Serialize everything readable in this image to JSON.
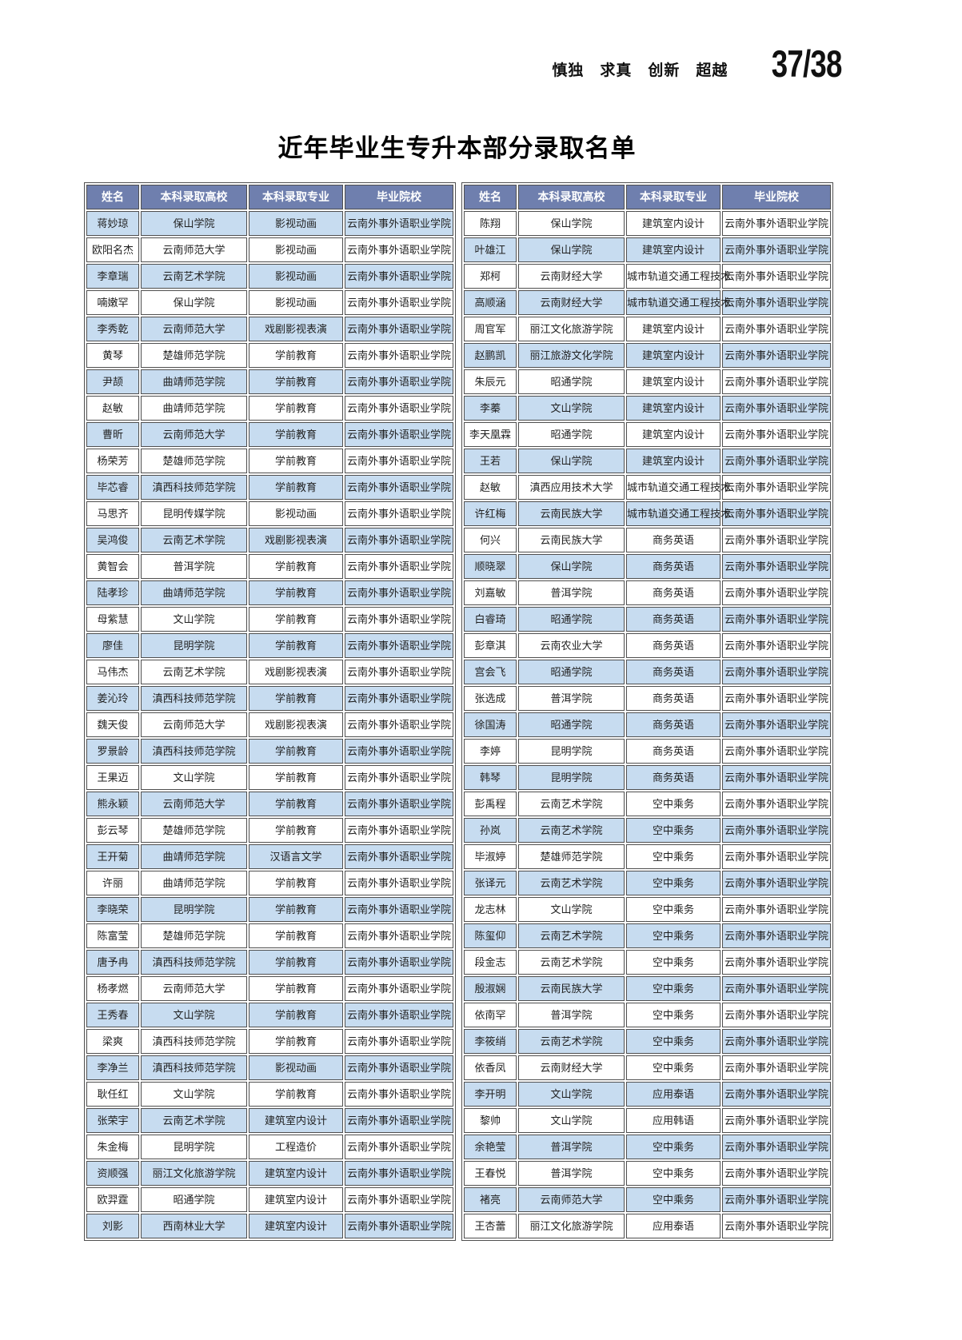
{
  "header": {
    "motto": "慎独　求真　创新　超越",
    "page_number": "37/38"
  },
  "title": "近年毕业生专升本部分录取名单",
  "tables": {
    "headers": [
      "姓名",
      "本科录取高校",
      "本科录取专业",
      "毕业院校"
    ],
    "left_rows": [
      [
        "蒋妙琼",
        "保山学院",
        "影视动画",
        "云南外事外语职业学院"
      ],
      [
        "欧阳名杰",
        "云南师范大学",
        "影视动画",
        "云南外事外语职业学院"
      ],
      [
        "李章瑞",
        "云南艺术学院",
        "影视动画",
        "云南外事外语职业学院"
      ],
      [
        "喃嫩罕",
        "保山学院",
        "影视动画",
        "云南外事外语职业学院"
      ],
      [
        "李秀乾",
        "云南师范大学",
        "戏剧影视表演",
        "云南外事外语职业学院"
      ],
      [
        "黄琴",
        "楚雄师范学院",
        "学前教育",
        "云南外事外语职业学院"
      ],
      [
        "尹颉",
        "曲靖师范学院",
        "学前教育",
        "云南外事外语职业学院"
      ],
      [
        "赵敏",
        "曲靖师范学院",
        "学前教育",
        "云南外事外语职业学院"
      ],
      [
        "曹昕",
        "云南师范大学",
        "学前教育",
        "云南外事外语职业学院"
      ],
      [
        "杨荣芳",
        "楚雄师范学院",
        "学前教育",
        "云南外事外语职业学院"
      ],
      [
        "毕芯睿",
        "滇西科技师范学院",
        "学前教育",
        "云南外事外语职业学院"
      ],
      [
        "马思齐",
        "昆明传媒学院",
        "影视动画",
        "云南外事外语职业学院"
      ],
      [
        "吴鸿俊",
        "云南艺术学院",
        "戏剧影视表演",
        "云南外事外语职业学院"
      ],
      [
        "黄智会",
        "普洱学院",
        "学前教育",
        "云南外事外语职业学院"
      ],
      [
        "陆孝珍",
        "曲靖师范学院",
        "学前教育",
        "云南外事外语职业学院"
      ],
      [
        "母紫慧",
        "文山学院",
        "学前教育",
        "云南外事外语职业学院"
      ],
      [
        "廖佳",
        "昆明学院",
        "学前教育",
        "云南外事外语职业学院"
      ],
      [
        "马伟杰",
        "云南艺术学院",
        "戏剧影视表演",
        "云南外事外语职业学院"
      ],
      [
        "姜沁玲",
        "滇西科技师范学院",
        "学前教育",
        "云南外事外语职业学院"
      ],
      [
        "魏天俊",
        "云南师范大学",
        "戏剧影视表演",
        "云南外事外语职业学院"
      ],
      [
        "罗景龄",
        "滇西科技师范学院",
        "学前教育",
        "云南外事外语职业学院"
      ],
      [
        "王果迈",
        "文山学院",
        "学前教育",
        "云南外事外语职业学院"
      ],
      [
        "熊永颖",
        "云南师范大学",
        "学前教育",
        "云南外事外语职业学院"
      ],
      [
        "彭云琴",
        "楚雄师范学院",
        "学前教育",
        "云南外事外语职业学院"
      ],
      [
        "王开菊",
        "曲靖师范学院",
        "汉语言文学",
        "云南外事外语职业学院"
      ],
      [
        "许丽",
        "曲靖师范学院",
        "学前教育",
        "云南外事外语职业学院"
      ],
      [
        "李晓荣",
        "昆明学院",
        "学前教育",
        "云南外事外语职业学院"
      ],
      [
        "陈富莹",
        "楚雄师范学院",
        "学前教育",
        "云南外事外语职业学院"
      ],
      [
        "唐予冉",
        "滇西科技师范学院",
        "学前教育",
        "云南外事外语职业学院"
      ],
      [
        "杨孝燃",
        "云南师范大学",
        "学前教育",
        "云南外事外语职业学院"
      ],
      [
        "王秀春",
        "文山学院",
        "学前教育",
        "云南外事外语职业学院"
      ],
      [
        "梁爽",
        "滇西科技师范学院",
        "学前教育",
        "云南外事外语职业学院"
      ],
      [
        "李净兰",
        "滇西科技师范学院",
        "影视动画",
        "云南外事外语职业学院"
      ],
      [
        "耿任红",
        "文山学院",
        "学前教育",
        "云南外事外语职业学院"
      ],
      [
        "张荣宇",
        "云南艺术学院",
        "建筑室内设计",
        "云南外事外语职业学院"
      ],
      [
        "朱金梅",
        "昆明学院",
        "工程造价",
        "云南外事外语职业学院"
      ],
      [
        "资顺强",
        "丽江文化旅游学院",
        "建筑室内设计",
        "云南外事外语职业学院"
      ],
      [
        "欧羿霆",
        "昭通学院",
        "建筑室内设计",
        "云南外事外语职业学院"
      ],
      [
        "刘影",
        "西南林业大学",
        "建筑室内设计",
        "云南外事外语职业学院"
      ]
    ],
    "right_rows": [
      [
        "陈翔",
        "保山学院",
        "建筑室内设计",
        "云南外事外语职业学院"
      ],
      [
        "叶雄江",
        "保山学院",
        "建筑室内设计",
        "云南外事外语职业学院"
      ],
      [
        "郑柯",
        "云南财经大学",
        "城市轨道交通工程技术",
        "云南外事外语职业学院"
      ],
      [
        "高顺涵",
        "云南财经大学",
        "城市轨道交通工程技术",
        "云南外事外语职业学院"
      ],
      [
        "周官军",
        "丽江文化旅游学院",
        "建筑室内设计",
        "云南外事外语职业学院"
      ],
      [
        "赵鹏凯",
        "丽江旅游文化学院",
        "建筑室内设计",
        "云南外事外语职业学院"
      ],
      [
        "朱辰元",
        "昭通学院",
        "建筑室内设计",
        "云南外事外语职业学院"
      ],
      [
        "李蓁",
        "文山学院",
        "建筑室内设计",
        "云南外事外语职业学院"
      ],
      [
        "李天凰霖",
        "昭通学院",
        "建筑室内设计",
        "云南外事外语职业学院"
      ],
      [
        "王若",
        "保山学院",
        "建筑室内设计",
        "云南外事外语职业学院"
      ],
      [
        "赵敏",
        "滇西应用技术大学",
        "城市轨道交通工程技术",
        "云南外事外语职业学院"
      ],
      [
        "许红梅",
        "云南民族大学",
        "城市轨道交通工程技术",
        "云南外事外语职业学院"
      ],
      [
        "何兴",
        "云南民族大学",
        "商务英语",
        "云南外事外语职业学院"
      ],
      [
        "顺晓翠",
        "保山学院",
        "商务英语",
        "云南外事外语职业学院"
      ],
      [
        "刘嘉敏",
        "普洱学院",
        "商务英语",
        "云南外事外语职业学院"
      ],
      [
        "白睿琦",
        "昭通学院",
        "商务英语",
        "云南外事外语职业学院"
      ],
      [
        "彭章淇",
        "云南农业大学",
        "商务英语",
        "云南外事外语职业学院"
      ],
      [
        "宫会飞",
        "昭通学院",
        "商务英语",
        "云南外事外语职业学院"
      ],
      [
        "张选成",
        "普洱学院",
        "商务英语",
        "云南外事外语职业学院"
      ],
      [
        "徐国涛",
        "昭通学院",
        "商务英语",
        "云南外事外语职业学院"
      ],
      [
        "李婷",
        "昆明学院",
        "商务英语",
        "云南外事外语职业学院"
      ],
      [
        "韩琴",
        "昆明学院",
        "商务英语",
        "云南外事外语职业学院"
      ],
      [
        "彭禹程",
        "云南艺术学院",
        "空中乘务",
        "云南外事外语职业学院"
      ],
      [
        "孙岚",
        "云南艺术学院",
        "空中乘务",
        "云南外事外语职业学院"
      ],
      [
        "毕淑婷",
        "楚雄师范学院",
        "空中乘务",
        "云南外事外语职业学院"
      ],
      [
        "张译元",
        "云南艺术学院",
        "空中乘务",
        "云南外事外语职业学院"
      ],
      [
        "龙志林",
        "文山学院",
        "空中乘务",
        "云南外事外语职业学院"
      ],
      [
        "陈玺仰",
        "云南艺术学院",
        "空中乘务",
        "云南外事外语职业学院"
      ],
      [
        "段金志",
        "云南艺术学院",
        "空中乘务",
        "云南外事外语职业学院"
      ],
      [
        "殷淑娴",
        "云南民族大学",
        "空中乘务",
        "云南外事外语职业学院"
      ],
      [
        "依南罕",
        "普洱学院",
        "空中乘务",
        "云南外事外语职业学院"
      ],
      [
        "李筱绡",
        "云南艺术学院",
        "空中乘务",
        "云南外事外语职业学院"
      ],
      [
        "依香凤",
        "云南财经大学",
        "空中乘务",
        "云南外事外语职业学院"
      ],
      [
        "李开明",
        "文山学院",
        "应用泰语",
        "云南外事外语职业学院"
      ],
      [
        "黎帅",
        "文山学院",
        "应用韩语",
        "云南外事外语职业学院"
      ],
      [
        "余艳莹",
        "普洱学院",
        "空中乘务",
        "云南外事外语职业学院"
      ],
      [
        "王春悦",
        "普洱学院",
        "空中乘务",
        "云南外事外语职业学院"
      ],
      [
        "褚亮",
        "云南师范大学",
        "空中乘务",
        "云南外事外语职业学院"
      ],
      [
        "王杏蕾",
        "丽江文化旅游学院",
        "应用泰语",
        "云南外事外语职业学院"
      ]
    ]
  },
  "colors": {
    "header_bg": "#6f7fae",
    "header_text": "#ffffff",
    "row_alt_bg": "#c7dcf0",
    "row_bg": "#ffffff",
    "border": "#4f4f4f"
  }
}
